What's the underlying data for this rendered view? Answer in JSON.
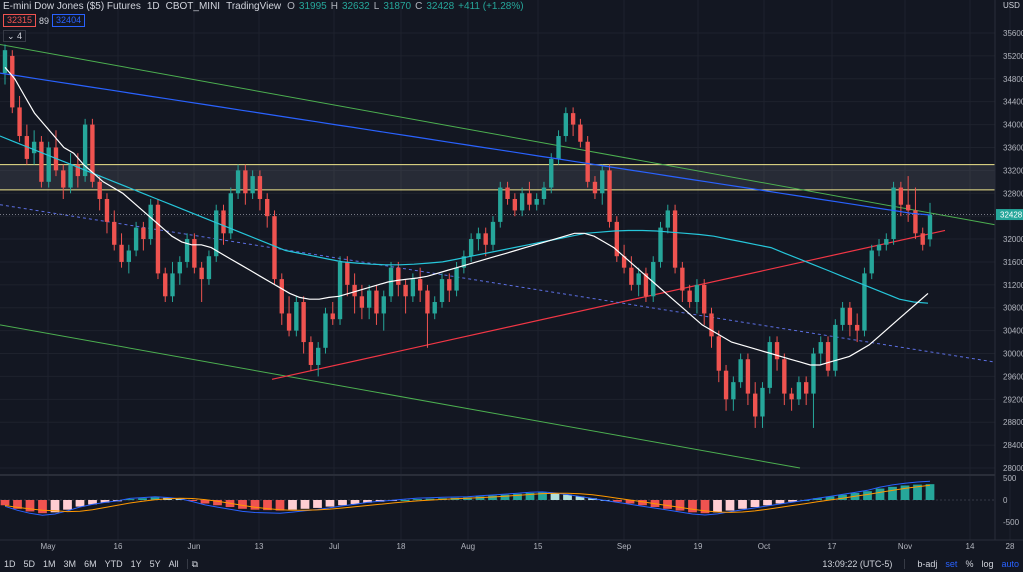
{
  "header": {
    "title": "E-mini Dow Jones ($5) Futures",
    "interval": "1D",
    "exchange": "CBOT_MINI",
    "source": "TradingView",
    "open_label": "O",
    "open": "31995",
    "high_label": "H",
    "high": "32632",
    "low_label": "L",
    "low": "31870",
    "close_label": "C",
    "close": "32428",
    "change": "+411 (+1.28%)"
  },
  "bid": "32315",
  "spread": "89",
  "ask": "32404",
  "collapse_label": "4",
  "price_axis": {
    "currency": "USD",
    "ticks": [
      "35600",
      "35200",
      "34800",
      "34400",
      "34000",
      "33600",
      "33200",
      "32800",
      "32400",
      "32000",
      "31600",
      "31200",
      "30800",
      "30400",
      "30000",
      "29600",
      "29200",
      "28800",
      "28400",
      "28000"
    ],
    "last_price": "32428"
  },
  "macd_axis": {
    "ticks": [
      "500",
      "0",
      "-500"
    ]
  },
  "time_axis": {
    "labels": [
      "May",
      "16",
      "Jun",
      "13",
      "Jul",
      "18",
      "Aug",
      "15",
      "Sep",
      "19",
      "Oct",
      "17",
      "Nov",
      "14",
      "28"
    ]
  },
  "bottom_bar": {
    "timeframes": [
      "1D",
      "5D",
      "1M",
      "3M",
      "6M",
      "YTD",
      "1Y",
      "5Y",
      "All"
    ],
    "time": "13:09:22 (UTC-5)",
    "badj": "b-adj",
    "set": "set",
    "percent": "%",
    "log": "log",
    "auto": "auto"
  },
  "colors": {
    "up": "#26a69a",
    "down": "#ef5350",
    "background": "#131722",
    "ma_white": "#ffffff",
    "ma_cyan": "#26c6da",
    "ma_blue": "#2962ff",
    "trend_green": "#4caf50",
    "trend_red": "#f23645",
    "resistance_yellow": "#f0e68c"
  },
  "chart_data": {
    "type": "candlestick",
    "title": "E-mini Dow Jones ($5) Futures",
    "ylim": [
      28000,
      35600
    ],
    "candles": [
      {
        "o": 34900,
        "c": 35300,
        "h": 35400,
        "l": 34700
      },
      {
        "o": 35200,
        "c": 34300,
        "h": 35300,
        "l": 34200
      },
      {
        "o": 34300,
        "c": 33800,
        "h": 34500,
        "l": 33700
      },
      {
        "o": 33800,
        "c": 33400,
        "h": 34000,
        "l": 33300
      },
      {
        "o": 33500,
        "c": 33700,
        "h": 33900,
        "l": 33300
      },
      {
        "o": 33700,
        "c": 33000,
        "h": 33800,
        "l": 32900
      },
      {
        "o": 33000,
        "c": 33600,
        "h": 33700,
        "l": 32900
      },
      {
        "o": 33600,
        "c": 33200,
        "h": 33900,
        "l": 33100
      },
      {
        "o": 33200,
        "c": 32900,
        "h": 33300,
        "l": 32700
      },
      {
        "o": 32900,
        "c": 33300,
        "h": 33500,
        "l": 32800
      },
      {
        "o": 33300,
        "c": 33100,
        "h": 33500,
        "l": 32900
      },
      {
        "o": 33100,
        "c": 34000,
        "h": 34100,
        "l": 33000
      },
      {
        "o": 34000,
        "c": 33000,
        "h": 34100,
        "l": 32900
      },
      {
        "o": 33000,
        "c": 32700,
        "h": 33100,
        "l": 32500
      },
      {
        "o": 32700,
        "c": 32300,
        "h": 32800,
        "l": 32100
      },
      {
        "o": 32300,
        "c": 31900,
        "h": 32500,
        "l": 31800
      },
      {
        "o": 31900,
        "c": 31600,
        "h": 32100,
        "l": 31500
      },
      {
        "o": 31600,
        "c": 31800,
        "h": 31900,
        "l": 31400
      },
      {
        "o": 31800,
        "c": 32200,
        "h": 32300,
        "l": 31700
      },
      {
        "o": 32200,
        "c": 32000,
        "h": 32300,
        "l": 31800
      },
      {
        "o": 32000,
        "c": 32600,
        "h": 32700,
        "l": 31900
      },
      {
        "o": 32600,
        "c": 31400,
        "h": 32700,
        "l": 31300
      },
      {
        "o": 31400,
        "c": 31000,
        "h": 31500,
        "l": 30900
      },
      {
        "o": 31000,
        "c": 31400,
        "h": 31600,
        "l": 30900
      },
      {
        "o": 31400,
        "c": 31600,
        "h": 31700,
        "l": 31200
      },
      {
        "o": 31600,
        "c": 32000,
        "h": 32100,
        "l": 31500
      },
      {
        "o": 32000,
        "c": 31500,
        "h": 32100,
        "l": 31400
      },
      {
        "o": 31500,
        "c": 31300,
        "h": 31600,
        "l": 30900
      },
      {
        "o": 31300,
        "c": 31700,
        "h": 31800,
        "l": 31200
      },
      {
        "o": 31700,
        "c": 32500,
        "h": 32600,
        "l": 31600
      },
      {
        "o": 32500,
        "c": 32100,
        "h": 32600,
        "l": 31900
      },
      {
        "o": 32100,
        "c": 32800,
        "h": 32900,
        "l": 32000
      },
      {
        "o": 32800,
        "c": 33200,
        "h": 33300,
        "l": 32700
      },
      {
        "o": 33200,
        "c": 32800,
        "h": 33300,
        "l": 32600
      },
      {
        "o": 32800,
        "c": 33100,
        "h": 33200,
        "l": 32700
      },
      {
        "o": 33100,
        "c": 32700,
        "h": 33200,
        "l": 32500
      },
      {
        "o": 32700,
        "c": 32400,
        "h": 32800,
        "l": 32200
      },
      {
        "o": 32400,
        "c": 31300,
        "h": 32500,
        "l": 31200
      },
      {
        "o": 31300,
        "c": 30700,
        "h": 31400,
        "l": 30500
      },
      {
        "o": 30700,
        "c": 30400,
        "h": 31000,
        "l": 30300
      },
      {
        "o": 30400,
        "c": 30900,
        "h": 31000,
        "l": 30300
      },
      {
        "o": 30900,
        "c": 30200,
        "h": 31000,
        "l": 30000
      },
      {
        "o": 30200,
        "c": 29800,
        "h": 30300,
        "l": 29700
      },
      {
        "o": 29800,
        "c": 30100,
        "h": 30200,
        "l": 29600
      },
      {
        "o": 30100,
        "c": 30700,
        "h": 30800,
        "l": 30000
      },
      {
        "o": 30700,
        "c": 30600,
        "h": 30900,
        "l": 30500
      },
      {
        "o": 30600,
        "c": 31600,
        "h": 31700,
        "l": 30500
      },
      {
        "o": 31600,
        "c": 31200,
        "h": 31700,
        "l": 31000
      },
      {
        "o": 31200,
        "c": 31000,
        "h": 31400,
        "l": 30700
      },
      {
        "o": 31000,
        "c": 30800,
        "h": 31200,
        "l": 30600
      },
      {
        "o": 30800,
        "c": 31100,
        "h": 31200,
        "l": 30600
      },
      {
        "o": 31100,
        "c": 30700,
        "h": 31200,
        "l": 30500
      },
      {
        "o": 30700,
        "c": 31000,
        "h": 31100,
        "l": 30400
      },
      {
        "o": 31000,
        "c": 31500,
        "h": 31600,
        "l": 30900
      },
      {
        "o": 31500,
        "c": 31200,
        "h": 31600,
        "l": 31000
      },
      {
        "o": 31200,
        "c": 31000,
        "h": 31300,
        "l": 30700
      },
      {
        "o": 31000,
        "c": 31300,
        "h": 31400,
        "l": 30900
      },
      {
        "o": 31300,
        "c": 31100,
        "h": 31500,
        "l": 30900
      },
      {
        "o": 31100,
        "c": 30700,
        "h": 31200,
        "l": 30100
      },
      {
        "o": 30700,
        "c": 30900,
        "h": 31000,
        "l": 30600
      },
      {
        "o": 30900,
        "c": 31300,
        "h": 31400,
        "l": 30800
      },
      {
        "o": 31300,
        "c": 31100,
        "h": 31400,
        "l": 30900
      },
      {
        "o": 31100,
        "c": 31500,
        "h": 31600,
        "l": 31000
      },
      {
        "o": 31500,
        "c": 31700,
        "h": 31800,
        "l": 31400
      },
      {
        "o": 31700,
        "c": 32000,
        "h": 32100,
        "l": 31600
      },
      {
        "o": 32000,
        "c": 32100,
        "h": 32200,
        "l": 31800
      },
      {
        "o": 32100,
        "c": 31900,
        "h": 32200,
        "l": 31700
      },
      {
        "o": 31900,
        "c": 32300,
        "h": 32400,
        "l": 31800
      },
      {
        "o": 32300,
        "c": 32900,
        "h": 33000,
        "l": 32200
      },
      {
        "o": 32900,
        "c": 32700,
        "h": 33000,
        "l": 32600
      },
      {
        "o": 32700,
        "c": 32500,
        "h": 32800,
        "l": 32400
      },
      {
        "o": 32500,
        "c": 32800,
        "h": 32900,
        "l": 32400
      },
      {
        "o": 32800,
        "c": 32600,
        "h": 33000,
        "l": 32500
      },
      {
        "o": 32600,
        "c": 32700,
        "h": 32800,
        "l": 32500
      },
      {
        "o": 32700,
        "c": 32900,
        "h": 33000,
        "l": 32600
      },
      {
        "o": 32900,
        "c": 33400,
        "h": 33500,
        "l": 32800
      },
      {
        "o": 33400,
        "c": 33800,
        "h": 33900,
        "l": 33300
      },
      {
        "o": 33800,
        "c": 34200,
        "h": 34300,
        "l": 33700
      },
      {
        "o": 34200,
        "c": 34000,
        "h": 34300,
        "l": 33800
      },
      {
        "o": 34000,
        "c": 33700,
        "h": 34100,
        "l": 33600
      },
      {
        "o": 33700,
        "c": 33000,
        "h": 33800,
        "l": 32900
      },
      {
        "o": 33000,
        "c": 32800,
        "h": 33100,
        "l": 32700
      },
      {
        "o": 32800,
        "c": 33200,
        "h": 33300,
        "l": 32600
      },
      {
        "o": 33200,
        "c": 32300,
        "h": 33300,
        "l": 32200
      },
      {
        "o": 32300,
        "c": 31700,
        "h": 32400,
        "l": 31600
      },
      {
        "o": 31700,
        "c": 31500,
        "h": 31900,
        "l": 31400
      },
      {
        "o": 31500,
        "c": 31200,
        "h": 31700,
        "l": 31100
      },
      {
        "o": 31200,
        "c": 31400,
        "h": 31500,
        "l": 31000
      },
      {
        "o": 31400,
        "c": 31000,
        "h": 31500,
        "l": 30900
      },
      {
        "o": 31000,
        "c": 31600,
        "h": 31700,
        "l": 30900
      },
      {
        "o": 31600,
        "c": 32200,
        "h": 32300,
        "l": 31500
      },
      {
        "o": 32200,
        "c": 32500,
        "h": 32600,
        "l": 32100
      },
      {
        "o": 32500,
        "c": 31500,
        "h": 32600,
        "l": 31400
      },
      {
        "o": 31500,
        "c": 31100,
        "h": 31600,
        "l": 30900
      },
      {
        "o": 31100,
        "c": 30900,
        "h": 31200,
        "l": 30800
      },
      {
        "o": 30900,
        "c": 31200,
        "h": 31300,
        "l": 30700
      },
      {
        "o": 31200,
        "c": 30700,
        "h": 31300,
        "l": 30500
      },
      {
        "o": 30700,
        "c": 30300,
        "h": 30800,
        "l": 30100
      },
      {
        "o": 30300,
        "c": 29700,
        "h": 30400,
        "l": 29500
      },
      {
        "o": 29700,
        "c": 29200,
        "h": 29800,
        "l": 29000
      },
      {
        "o": 29200,
        "c": 29500,
        "h": 29600,
        "l": 29000
      },
      {
        "o": 29500,
        "c": 29900,
        "h": 30000,
        "l": 29400
      },
      {
        "o": 29900,
        "c": 29300,
        "h": 30000,
        "l": 29100
      },
      {
        "o": 29300,
        "c": 28900,
        "h": 29500,
        "l": 28700
      },
      {
        "o": 28900,
        "c": 29400,
        "h": 29500,
        "l": 28700
      },
      {
        "o": 29400,
        "c": 30200,
        "h": 30300,
        "l": 29300
      },
      {
        "o": 30200,
        "c": 29900,
        "h": 30300,
        "l": 29700
      },
      {
        "o": 29900,
        "c": 29300,
        "h": 30000,
        "l": 29100
      },
      {
        "o": 29300,
        "c": 29200,
        "h": 29400,
        "l": 29000
      },
      {
        "o": 29200,
        "c": 29500,
        "h": 29600,
        "l": 29100
      },
      {
        "o": 29500,
        "c": 29300,
        "h": 29600,
        "l": 29100
      },
      {
        "o": 29300,
        "c": 30000,
        "h": 30100,
        "l": 28700
      },
      {
        "o": 30000,
        "c": 30200,
        "h": 30300,
        "l": 29800
      },
      {
        "o": 30200,
        "c": 29700,
        "h": 30300,
        "l": 29600
      },
      {
        "o": 29700,
        "c": 30500,
        "h": 30600,
        "l": 29600
      },
      {
        "o": 30500,
        "c": 30800,
        "h": 30900,
        "l": 30400
      },
      {
        "o": 30800,
        "c": 30500,
        "h": 30900,
        "l": 30300
      },
      {
        "o": 30500,
        "c": 30400,
        "h": 30700,
        "l": 30200
      },
      {
        "o": 30400,
        "c": 31400,
        "h": 31500,
        "l": 30300
      },
      {
        "o": 31400,
        "c": 31800,
        "h": 31900,
        "l": 31300
      },
      {
        "o": 31800,
        "c": 31900,
        "h": 32000,
        "l": 31700
      },
      {
        "o": 31900,
        "c": 32000,
        "h": 32100,
        "l": 31800
      },
      {
        "o": 32000,
        "c": 32900,
        "h": 33000,
        "l": 31900
      },
      {
        "o": 32900,
        "c": 32600,
        "h": 33000,
        "l": 32400
      },
      {
        "o": 32600,
        "c": 32500,
        "h": 33100,
        "l": 32300
      },
      {
        "o": 32500,
        "c": 32100,
        "h": 32900,
        "l": 32000
      },
      {
        "o": 32100,
        "c": 31900,
        "h": 32200,
        "l": 31800
      },
      {
        "o": 31995,
        "c": 32428,
        "h": 32632,
        "l": 31870
      }
    ],
    "ma_white": [
      35000,
      34800,
      34500,
      34200,
      34000,
      33800,
      33600,
      33500,
      33300,
      33150,
      33000,
      32900,
      32800,
      32650,
      32500,
      32350,
      32200,
      32050,
      31950,
      31900,
      31900,
      31850,
      31750,
      31650,
      31550,
      31450,
      31350,
      31250,
      31150,
      31050,
      30980,
      30950,
      30950,
      30980,
      31000,
      31050,
      31100,
      31150,
      31200,
      31250,
      31280,
      31300,
      31320,
      31350,
      31400,
      31450,
      31500,
      31550,
      31600,
      31650,
      31700,
      31750,
      31800,
      31850,
      31900,
      31950,
      32000,
      32050,
      32100,
      32100,
      32050,
      31950,
      31850,
      31700,
      31550,
      31400,
      31250,
      31100,
      30950,
      30800,
      30650,
      30500,
      30400,
      30300,
      30200,
      30150,
      30100,
      30050,
      30000,
      29950,
      29900,
      29850,
      29800,
      29800,
      29850,
      29900,
      29950,
      30050,
      30150,
      30300,
      30450,
      30600,
      30750,
      30900,
      31050
    ],
    "ma_cyan": [
      33800,
      33700,
      33600,
      33500,
      33400,
      33300,
      33200,
      33100,
      33000,
      32900,
      32800,
      32700,
      32600,
      32500,
      32400,
      32300,
      32200,
      32100,
      32000,
      31900,
      31800,
      31750,
      31700,
      31650,
      31600,
      31580,
      31560,
      31550,
      31550,
      31560,
      31580,
      31600,
      31650,
      31700,
      31750,
      31800,
      31850,
      31900,
      31950,
      32000,
      32050,
      32100,
      32120,
      32140,
      32150,
      32150,
      32140,
      32120,
      32100,
      32080,
      32050,
      32000,
      31950,
      31900,
      31850,
      31750,
      31650,
      31550,
      31450,
      31350,
      31250,
      31150,
      31050,
      30950,
      30900,
      30880
    ],
    "ma_blue": [
      34900,
      34850,
      34800,
      34750,
      34700,
      34650,
      34600,
      34550,
      34500,
      34450,
      34400,
      34350,
      34300,
      34250,
      34200,
      34150,
      34100,
      34050,
      34000,
      33950,
      33900,
      33850,
      33800,
      33750,
      33700,
      33650,
      33600,
      33550,
      33500,
      33450,
      33400,
      33350,
      33300,
      33250,
      33200,
      33150,
      33100,
      33050,
      33000,
      32950,
      32900,
      32850,
      32800,
      32750,
      32700,
      32650,
      32600,
      32550,
      32500,
      32450,
      32420
    ],
    "macd_hist": [
      -120,
      -200,
      -260,
      -300,
      -280,
      -220,
      -150,
      -100,
      -60,
      -30,
      20,
      40,
      60,
      50,
      30,
      -20,
      -80,
      -120,
      -160,
      -200,
      -220,
      -230,
      -240,
      -220,
      -200,
      -180,
      -150,
      -120,
      -90,
      -60,
      -40,
      -20,
      0,
      20,
      30,
      40,
      50,
      60,
      80,
      100,
      120,
      140,
      160,
      170,
      150,
      120,
      80,
      40,
      0,
      -40,
      -80,
      -120,
      -160,
      -200,
      -240,
      -280,
      -300,
      -280,
      -240,
      -200,
      -160,
      -120,
      -80,
      -40,
      0,
      40,
      80,
      120,
      160,
      200,
      260,
      300,
      330,
      350,
      360
    ],
    "macd_ylim": [
      -500,
      500
    ]
  }
}
